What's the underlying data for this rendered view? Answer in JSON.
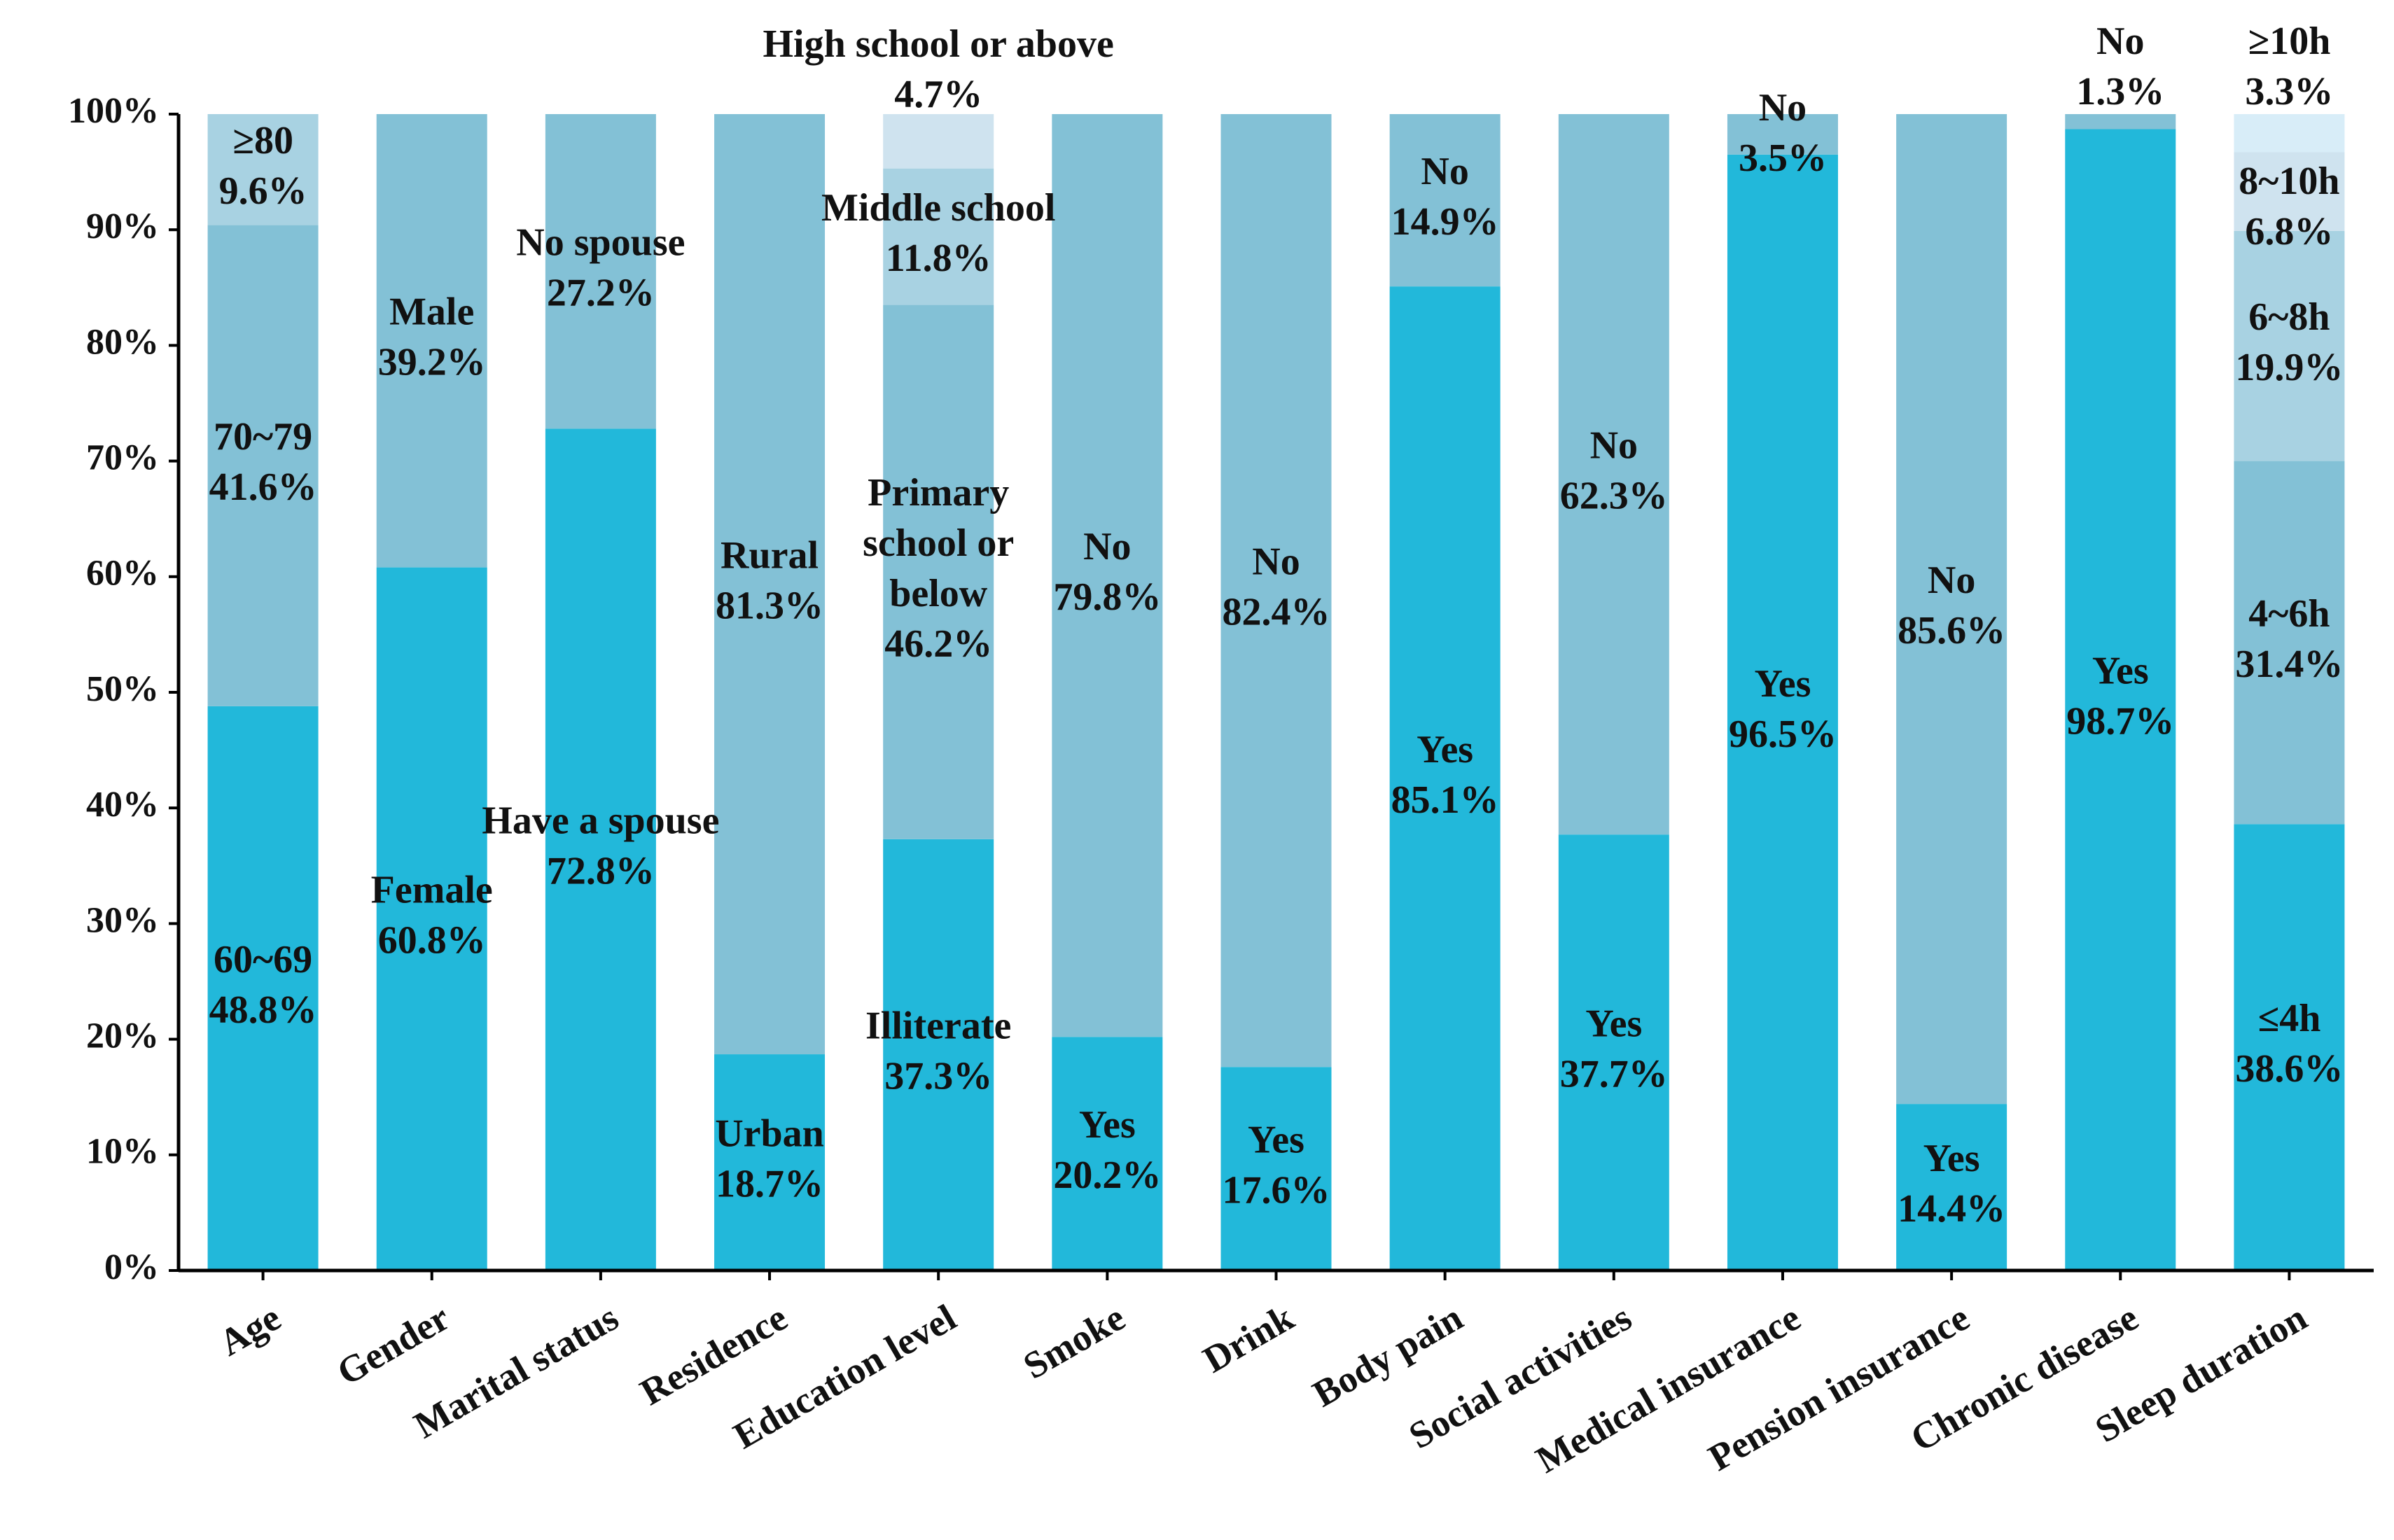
{
  "chart_data": {
    "type": "stacked-bar-100",
    "ylim": [
      0,
      100
    ],
    "yticks": [
      "0%",
      "10%",
      "20%",
      "30%",
      "40%",
      "50%",
      "60%",
      "70%",
      "80%",
      "90%",
      "100%"
    ],
    "palette": [
      "#22b8da",
      "#83c1d6",
      "#a8d2e2",
      "#cfe3ef",
      "#d8edf8"
    ],
    "categories": [
      {
        "name": "Age",
        "segments": [
          {
            "label": "60~69",
            "pct_text": "48.8%",
            "value": 48.8
          },
          {
            "label": "70~79",
            "pct_text": "41.6%",
            "value": 41.6
          },
          {
            "label": "≥80",
            "pct_text": "9.6%",
            "value": 9.6
          }
        ]
      },
      {
        "name": "Gender",
        "segments": [
          {
            "label": "Female",
            "pct_text": "60.8%",
            "value": 60.8
          },
          {
            "label": "Male",
            "pct_text": "39.2%",
            "value": 39.2
          }
        ]
      },
      {
        "name": "Marital status",
        "segments": [
          {
            "label": "Have a spouse",
            "pct_text": "72.8%",
            "value": 72.8
          },
          {
            "label": "No spouse",
            "pct_text": "27.2%",
            "value": 27.2
          }
        ]
      },
      {
        "name": "Residence",
        "segments": [
          {
            "label": "Urban",
            "pct_text": "18.7%",
            "value": 18.7
          },
          {
            "label": "Rural",
            "pct_text": "81.3%",
            "value": 81.3
          }
        ]
      },
      {
        "name": "Education level",
        "segments": [
          {
            "label": "Illiterate",
            "pct_text": "37.3%",
            "value": 37.3
          },
          {
            "label": "Primary school or below",
            "pct_text": "46.2%",
            "value": 46.2
          },
          {
            "label": "Middle school",
            "pct_text": "11.8%",
            "value": 11.8
          },
          {
            "label": "High school or above",
            "pct_text": "4.7%",
            "value": 4.7
          }
        ]
      },
      {
        "name": "Smoke",
        "segments": [
          {
            "label": "Yes",
            "pct_text": "20.2%",
            "value": 20.2
          },
          {
            "label": "No",
            "pct_text": "79.8%",
            "value": 79.8
          }
        ]
      },
      {
        "name": "Drink",
        "segments": [
          {
            "label": "Yes",
            "pct_text": "17.6%",
            "value": 17.6
          },
          {
            "label": "No",
            "pct_text": "82.4%",
            "value": 82.4
          }
        ]
      },
      {
        "name": "Body pain",
        "segments": [
          {
            "label": "Yes",
            "pct_text": "85.1%",
            "value": 85.1
          },
          {
            "label": "No",
            "pct_text": "14.9%",
            "value": 14.9
          }
        ]
      },
      {
        "name": "Social activities",
        "segments": [
          {
            "label": "Yes",
            "pct_text": "37.7%",
            "value": 37.7
          },
          {
            "label": "No",
            "pct_text": "62.3%",
            "value": 62.3
          }
        ]
      },
      {
        "name": "Medical insurance",
        "segments": [
          {
            "label": "Yes",
            "pct_text": "96.5%",
            "value": 96.5
          },
          {
            "label": "No",
            "pct_text": "3.5%",
            "value": 3.5
          }
        ]
      },
      {
        "name": "Pension insurance",
        "segments": [
          {
            "label": "Yes",
            "pct_text": "14.4%",
            "value": 14.4
          },
          {
            "label": "No",
            "pct_text": "85.6%",
            "value": 85.6
          }
        ]
      },
      {
        "name": "Chronic disease",
        "segments": [
          {
            "label": "Yes",
            "pct_text": "98.7%",
            "value": 98.7
          },
          {
            "label": "No",
            "pct_text": "1.3%",
            "value": 1.3
          }
        ]
      },
      {
        "name": "Sleep duration",
        "segments": [
          {
            "label": "≤4h",
            "pct_text": "38.6%",
            "value": 38.6
          },
          {
            "label": "4~6h",
            "pct_text": "31.4%",
            "value": 31.4
          },
          {
            "label": "6~8h",
            "pct_text": "19.9%",
            "value": 19.9
          },
          {
            "label": "8~10h",
            "pct_text": "6.8%",
            "value": 6.8
          },
          {
            "label": "≥10h",
            "pct_text": "3.3%",
            "value": 3.3
          }
        ]
      }
    ]
  }
}
